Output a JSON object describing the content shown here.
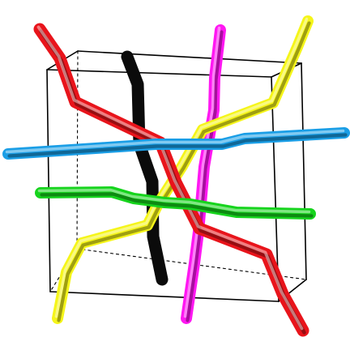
{
  "figure": {
    "background": "#ffffff",
    "cube_edge_color": "#000000",
    "rod_colors": {
      "red": "#e8141b",
      "black": "#0b0b0b",
      "magenta": "#ff17f2",
      "yellow": "#f5f51a",
      "blue": "#1a9ee6",
      "green": "#16d41d"
    }
  }
}
